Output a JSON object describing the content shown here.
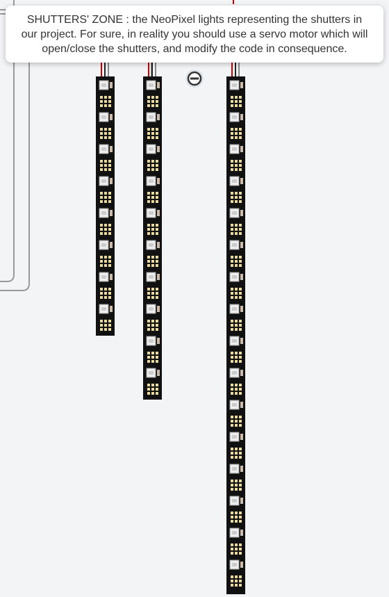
{
  "tooltip": {
    "lines": [
      "SHUTTERS' ZONE : the NeoPixel lights representing the shutters in",
      "our project. For sure, in reality you should use a servo motor which will",
      "open/close the shutters, and modify the code in consequence."
    ]
  }
}
